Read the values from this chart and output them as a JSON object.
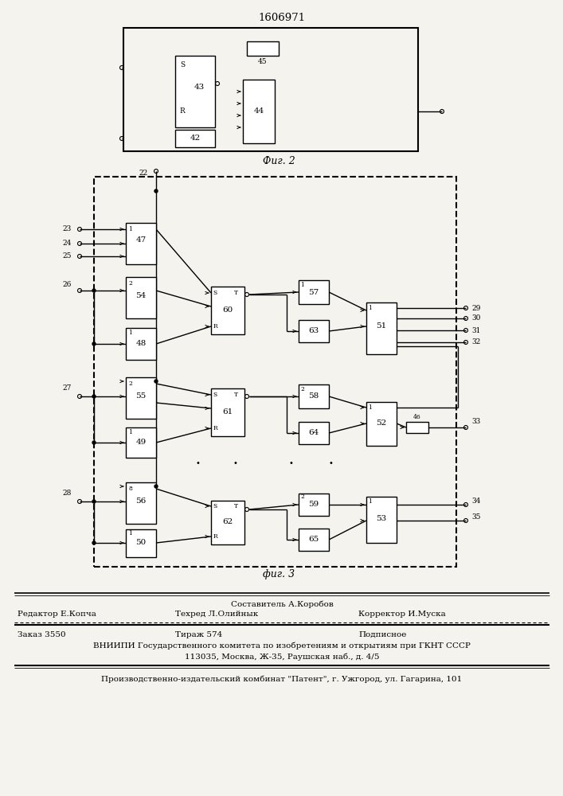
{
  "title": "1606971",
  "fig2_label": "Фиг. 2",
  "fig3_label": "фиг. 3",
  "footer_line1_center": "Составитель А.Коробов",
  "footer_line2_left": "Редактор Е.Копча",
  "footer_line2_mid": "Техред Л.Олийнык",
  "footer_line2_right": "Корректор И.Муска",
  "footer_line3_left": "Заказ 3550",
  "footer_line3_mid": "Тираж 574",
  "footer_line3_right": "Подписное",
  "footer_line4": "ВНИИПИ Государственного комитета по изобретениям и открытиям при ГКНТ СССР",
  "footer_line5": "113035, Москва, Ж-35, Раушская наб., д. 4/5",
  "footer_line6": "Производственно-издательский комбинат \"Патент\", г. Ужгород, ул. Гагарина, 101",
  "bg_color": "#f5f3ee"
}
